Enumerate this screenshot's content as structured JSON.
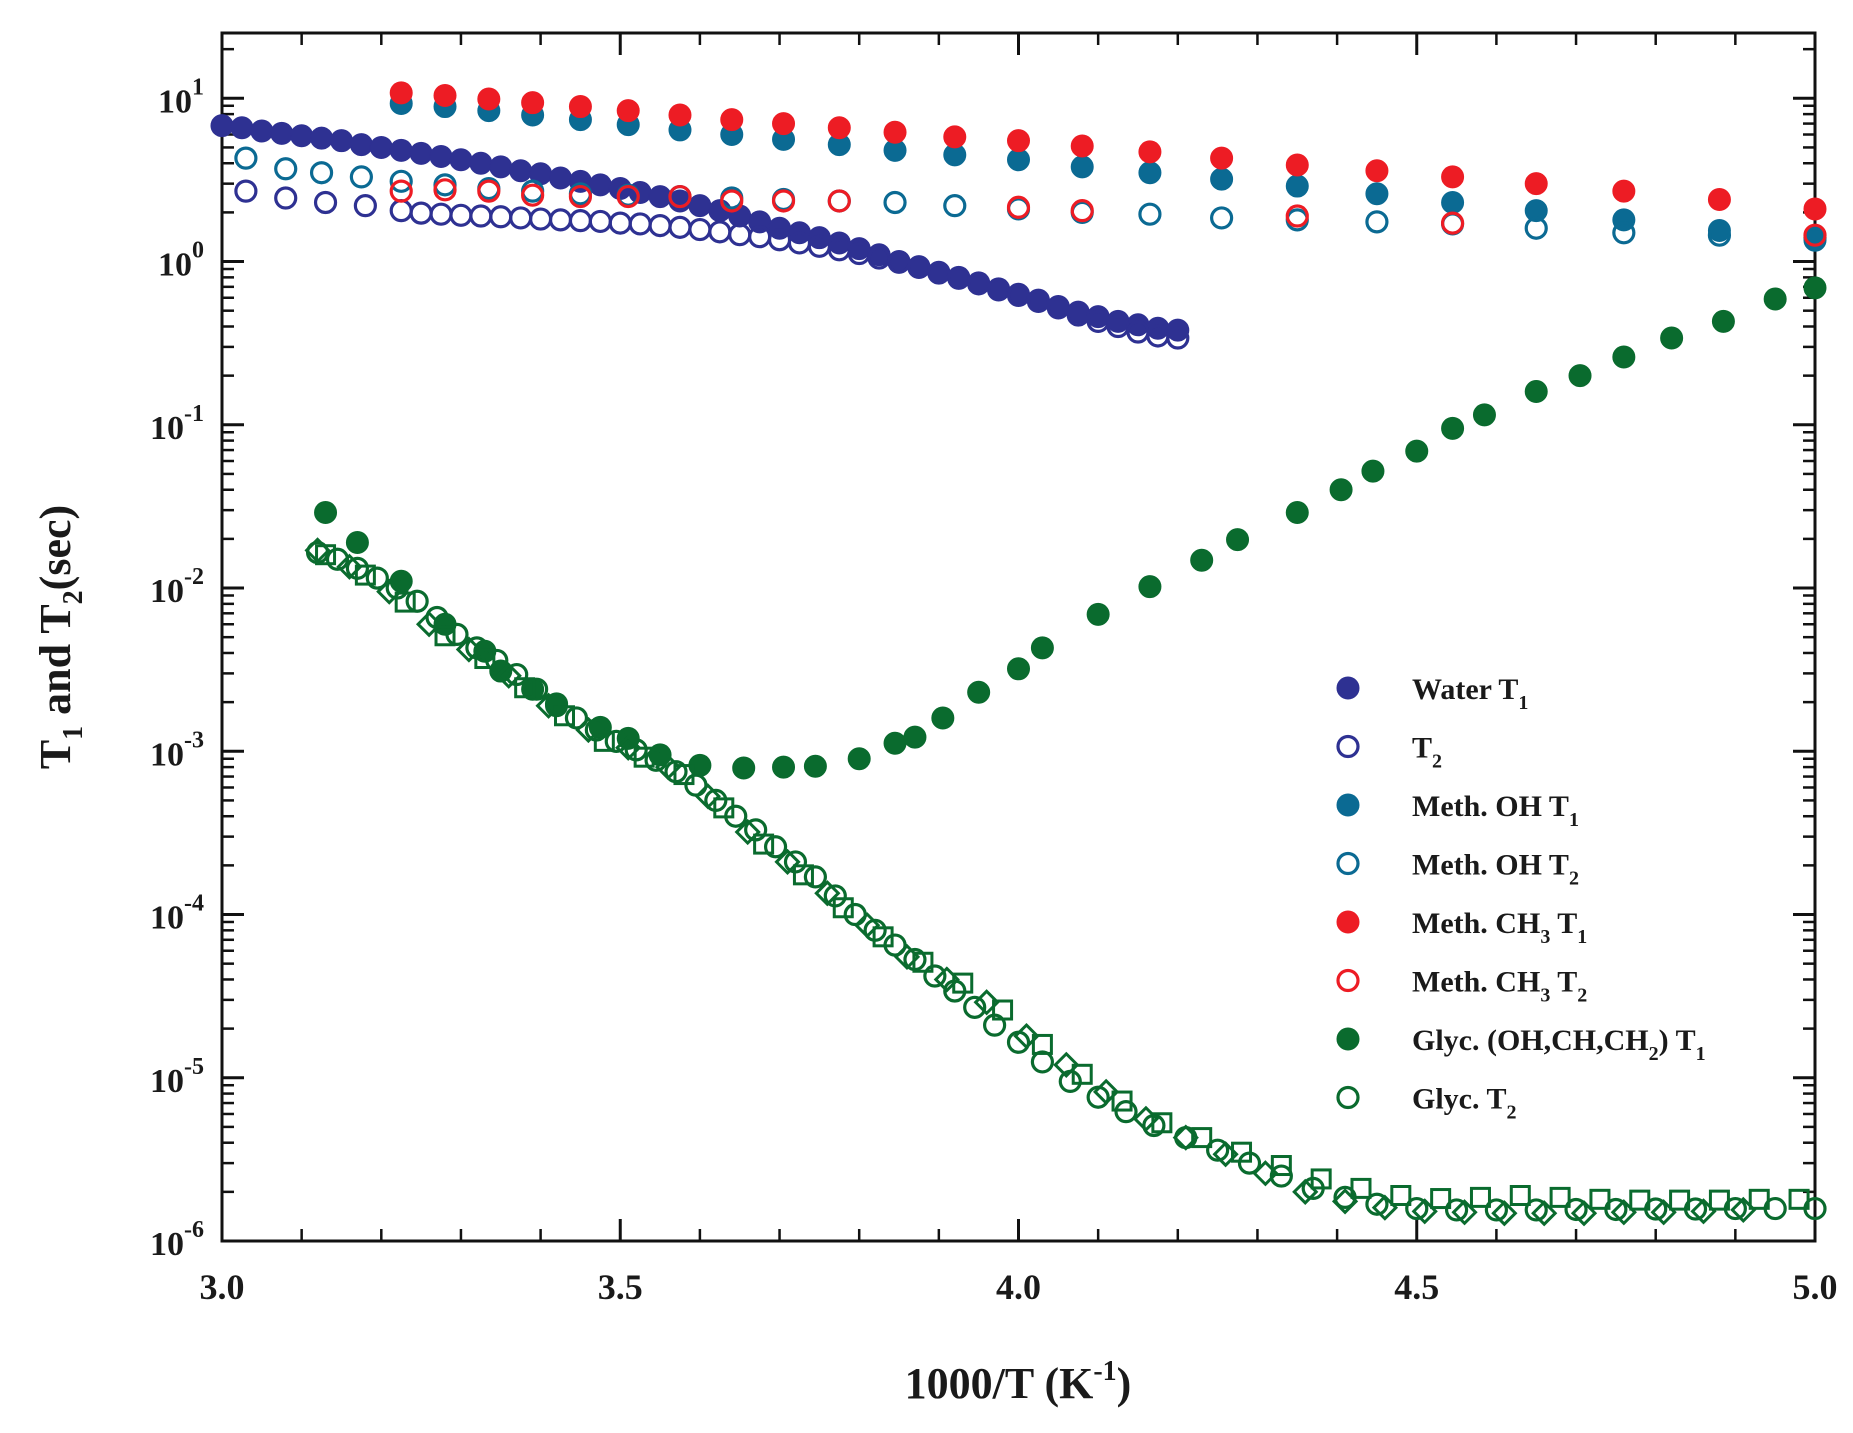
{
  "chart_data": {
    "type": "scatter",
    "xlabel": "1000/T (K",
    "xlabel_sup": "-1",
    "xlabel_end": ")",
    "ylabel_parts": [
      "T",
      "1",
      " and T",
      "2",
      "(sec)"
    ],
    "xlim": [
      3.0,
      5.0
    ],
    "ylim_log10": [
      -6,
      1.4
    ],
    "y_scale": "log",
    "x_ticks": [
      {
        "value": 3.0,
        "label": "3.0"
      },
      {
        "value": 3.5,
        "label": "3.5"
      },
      {
        "value": 4.0,
        "label": "4.0"
      },
      {
        "value": 4.5,
        "label": "4.5"
      },
      {
        "value": 5.0,
        "label": "5.0"
      }
    ],
    "y_ticks": [
      {
        "exp": 1,
        "base": "10",
        "sup": "1"
      },
      {
        "exp": 0,
        "base": "10",
        "sup": "0"
      },
      {
        "exp": -1,
        "base": "10",
        "sup": "-1"
      },
      {
        "exp": -2,
        "base": "10",
        "sup": "-2"
      },
      {
        "exp": -3,
        "base": "10",
        "sup": "-3"
      },
      {
        "exp": -4,
        "base": "10",
        "sup": "-4"
      },
      {
        "exp": -5,
        "base": "10",
        "sup": "-5"
      },
      {
        "exp": -6,
        "base": "10",
        "sup": "-6"
      }
    ],
    "legend_position": "right-center",
    "series": [
      {
        "id": "water-t1",
        "color": "#2e3192",
        "marker": "filled-circle",
        "legend": [
          [
            "Water T",
            ""
          ],
          [
            "1",
            "sub"
          ]
        ],
        "x": [
          3.0,
          3.025,
          3.05,
          3.075,
          3.1,
          3.125,
          3.15,
          3.175,
          3.2,
          3.225,
          3.25,
          3.275,
          3.3,
          3.325,
          3.35,
          3.375,
          3.4,
          3.425,
          3.45,
          3.475,
          3.5,
          3.525,
          3.55,
          3.575,
          3.6,
          3.625,
          3.65,
          3.675,
          3.7,
          3.725,
          3.75,
          3.775,
          3.8,
          3.825,
          3.85,
          3.875,
          3.9,
          3.925,
          3.95,
          3.975,
          4.0,
          4.025,
          4.05,
          4.075,
          4.1,
          4.125,
          4.15,
          4.175,
          4.2
        ],
        "y": [
          6.8,
          6.6,
          6.3,
          6.1,
          5.9,
          5.7,
          5.5,
          5.2,
          5.0,
          4.8,
          4.6,
          4.4,
          4.2,
          4.0,
          3.8,
          3.6,
          3.45,
          3.25,
          3.1,
          2.95,
          2.8,
          2.65,
          2.5,
          2.35,
          2.2,
          2.05,
          1.9,
          1.75,
          1.6,
          1.5,
          1.4,
          1.3,
          1.2,
          1.1,
          1.0,
          0.93,
          0.86,
          0.8,
          0.74,
          0.68,
          0.63,
          0.58,
          0.53,
          0.49,
          0.46,
          0.43,
          0.41,
          0.39,
          0.38
        ]
      },
      {
        "id": "water-t2",
        "color": "#2e3192",
        "marker": "open-circle",
        "legend": [
          [
            "T",
            ""
          ],
          [
            "2",
            "sub"
          ]
        ],
        "x": [
          3.03,
          3.08,
          3.13,
          3.18,
          3.225,
          3.25,
          3.275,
          3.3,
          3.325,
          3.35,
          3.375,
          3.4,
          3.425,
          3.45,
          3.475,
          3.5,
          3.525,
          3.55,
          3.575,
          3.6,
          3.625,
          3.65,
          3.675,
          3.7,
          3.725,
          3.75,
          3.775,
          3.8,
          3.825,
          3.85,
          3.875,
          3.9,
          3.925,
          3.95,
          3.975,
          4.0,
          4.025,
          4.05,
          4.075,
          4.1,
          4.125,
          4.15,
          4.175,
          4.2
        ],
        "y": [
          2.7,
          2.45,
          2.3,
          2.2,
          2.05,
          1.98,
          1.95,
          1.92,
          1.9,
          1.88,
          1.85,
          1.82,
          1.8,
          1.78,
          1.76,
          1.72,
          1.7,
          1.66,
          1.62,
          1.57,
          1.52,
          1.46,
          1.42,
          1.36,
          1.3,
          1.24,
          1.18,
          1.12,
          1.05,
          0.99,
          0.92,
          0.85,
          0.79,
          0.73,
          0.67,
          0.62,
          0.57,
          0.52,
          0.47,
          0.43,
          0.4,
          0.37,
          0.35,
          0.34
        ]
      },
      {
        "id": "meth-oh-t1",
        "color": "#0b6a93",
        "marker": "filled-circle",
        "legend": [
          [
            "Meth. OH T",
            ""
          ],
          [
            "1",
            "sub"
          ]
        ],
        "x": [
          3.225,
          3.28,
          3.335,
          3.39,
          3.45,
          3.51,
          3.575,
          3.64,
          3.705,
          3.775,
          3.845,
          3.92,
          4.0,
          4.08,
          4.165,
          4.255,
          4.35,
          4.45,
          4.545,
          4.65,
          4.76,
          4.88,
          5.0
        ],
        "y": [
          9.3,
          8.9,
          8.4,
          7.9,
          7.4,
          6.9,
          6.4,
          6.0,
          5.6,
          5.2,
          4.8,
          4.5,
          4.2,
          3.8,
          3.5,
          3.2,
          2.9,
          2.6,
          2.3,
          2.05,
          1.8,
          1.55,
          1.35
        ]
      },
      {
        "id": "meth-oh-t2",
        "color": "#0b6a93",
        "marker": "open-circle",
        "legend": [
          [
            "Meth. OH T",
            ""
          ],
          [
            "2",
            "sub"
          ]
        ],
        "x": [
          3.03,
          3.08,
          3.125,
          3.175,
          3.225,
          3.28,
          3.335,
          3.39,
          3.45,
          3.51,
          3.575,
          3.64,
          3.705,
          3.775,
          3.845,
          3.92,
          4.0,
          4.08,
          4.165,
          4.255,
          4.35,
          4.45,
          4.545,
          4.65,
          4.76,
          4.88,
          5.0
        ],
        "y": [
          4.3,
          3.7,
          3.5,
          3.3,
          3.1,
          2.95,
          2.8,
          2.7,
          2.6,
          2.55,
          2.5,
          2.45,
          2.4,
          2.35,
          2.3,
          2.2,
          2.1,
          2.0,
          1.95,
          1.85,
          1.8,
          1.75,
          1.7,
          1.6,
          1.5,
          1.45,
          1.4
        ]
      },
      {
        "id": "meth-ch3-t1",
        "color": "#ed1c24",
        "marker": "filled-circle",
        "legend": [
          [
            "Meth.  CH",
            ""
          ],
          [
            "3",
            "sub"
          ],
          [
            " T",
            ""
          ],
          [
            "1",
            "sub"
          ]
        ],
        "x": [
          3.225,
          3.28,
          3.335,
          3.39,
          3.45,
          3.51,
          3.575,
          3.64,
          3.705,
          3.775,
          3.845,
          3.92,
          4.0,
          4.08,
          4.165,
          4.255,
          4.35,
          4.45,
          4.545,
          4.65,
          4.76,
          4.88,
          5.0
        ],
        "y": [
          10.8,
          10.4,
          9.9,
          9.4,
          8.9,
          8.4,
          7.9,
          7.4,
          7.0,
          6.6,
          6.2,
          5.8,
          5.5,
          5.1,
          4.7,
          4.3,
          3.9,
          3.6,
          3.3,
          3.0,
          2.7,
          2.4,
          2.1
        ]
      },
      {
        "id": "meth-ch3-t2",
        "color": "#ed1c24",
        "marker": "open-circle",
        "legend": [
          [
            "Meth. CH",
            ""
          ],
          [
            "3",
            "sub"
          ],
          [
            " T",
            ""
          ],
          [
            "2",
            "sub"
          ]
        ],
        "x": [
          3.225,
          3.28,
          3.335,
          3.39,
          3.45,
          3.51,
          3.575,
          3.64,
          3.705,
          3.775,
          4.0,
          4.08,
          4.35,
          4.545,
          5.0
        ],
        "y": [
          2.7,
          2.75,
          2.7,
          2.55,
          2.5,
          2.5,
          2.5,
          2.35,
          2.35,
          2.35,
          2.15,
          2.05,
          1.9,
          1.72,
          1.45
        ]
      },
      {
        "id": "glyc-t1",
        "color": "#0a6b2e",
        "marker": "filled-circle",
        "legend": [
          [
            "Glyc. (OH,CH,CH",
            ""
          ],
          [
            "2",
            "sub"
          ],
          [
            ") T",
            ""
          ],
          [
            "1",
            "sub"
          ]
        ],
        "x": [
          3.13,
          3.17,
          3.225,
          3.28,
          3.33,
          3.35,
          3.39,
          3.42,
          3.475,
          3.51,
          3.55,
          3.6,
          3.655,
          3.705,
          3.745,
          3.8,
          3.845,
          3.87,
          3.905,
          3.95,
          4.0,
          4.03,
          4.1,
          4.165,
          4.23,
          4.275,
          4.35,
          4.405,
          4.445,
          4.5,
          4.545,
          4.585,
          4.65,
          4.705,
          4.76,
          4.82,
          4.885,
          4.95,
          5.0
        ],
        "y": [
          0.029,
          0.019,
          0.011,
          0.006,
          0.0041,
          0.0031,
          0.0024,
          0.0019,
          0.0014,
          0.0012,
          0.00095,
          0.00082,
          0.00079,
          0.0008,
          0.00081,
          0.0009,
          0.00112,
          0.00122,
          0.0016,
          0.0023,
          0.0032,
          0.0043,
          0.0069,
          0.0102,
          0.0148,
          0.0198,
          0.029,
          0.04,
          0.052,
          0.069,
          0.095,
          0.115,
          0.16,
          0.2,
          0.26,
          0.34,
          0.43,
          0.59,
          0.69
        ]
      },
      {
        "id": "glyc-t2",
        "color": "#0a6b2e",
        "marker": "open-circle",
        "legend": [
          [
            "Glyc. T",
            ""
          ],
          [
            "2",
            "sub"
          ]
        ],
        "x": [
          3.12,
          3.145,
          3.17,
          3.195,
          3.22,
          3.245,
          3.27,
          3.295,
          3.32,
          3.345,
          3.37,
          3.395,
          3.42,
          3.445,
          3.47,
          3.495,
          3.52,
          3.545,
          3.57,
          3.595,
          3.62,
          3.645,
          3.67,
          3.695,
          3.72,
          3.745,
          3.77,
          3.795,
          3.82,
          3.845,
          3.87,
          3.895,
          3.92,
          3.945,
          3.97,
          4.0,
          4.03,
          4.065,
          4.1,
          4.135,
          4.17,
          4.21,
          4.25,
          4.29,
          4.33,
          4.37,
          4.41,
          4.45,
          4.5,
          4.55,
          4.6,
          4.65,
          4.7,
          4.75,
          4.8,
          4.85,
          4.9,
          4.95,
          5.0
        ],
        "y": [
          0.0165,
          0.015,
          0.0132,
          0.0115,
          0.01,
          0.0083,
          0.0066,
          0.0052,
          0.0043,
          0.0036,
          0.00295,
          0.0024,
          0.00195,
          0.0016,
          0.00135,
          0.00115,
          0.00102,
          0.00088,
          0.00075,
          0.00062,
          0.0005,
          0.0004,
          0.00033,
          0.00026,
          0.00021,
          0.00017,
          0.00013,
          0.0001,
          8e-05,
          6.5e-05,
          5.3e-05,
          4.2e-05,
          3.4e-05,
          2.7e-05,
          2.1e-05,
          1.65e-05,
          1.25e-05,
          9.5e-06,
          7.6e-06,
          6.2e-06,
          5.1e-06,
          4.3e-06,
          3.6e-06,
          3e-06,
          2.5e-06,
          2.1e-06,
          1.85e-06,
          1.68e-06,
          1.58e-06,
          1.55e-06,
          1.55e-06,
          1.55e-06,
          1.56e-06,
          1.56e-06,
          1.57e-06,
          1.57e-06,
          1.58e-06,
          1.58e-06,
          1.58e-06
        ]
      },
      {
        "id": "glyc-t2-squares",
        "color": "#0a6b2e",
        "marker": "open-square",
        "legend": null,
        "x": [
          3.13,
          3.18,
          3.23,
          3.28,
          3.33,
          3.38,
          3.43,
          3.48,
          3.53,
          3.58,
          3.63,
          3.68,
          3.73,
          3.78,
          3.83,
          3.88,
          3.93,
          3.98,
          4.03,
          4.08,
          4.13,
          4.18,
          4.23,
          4.28,
          4.33,
          4.38,
          4.43,
          4.48,
          4.53,
          4.58,
          4.63,
          4.68,
          4.73,
          4.78,
          4.83,
          4.88,
          4.93,
          4.98
        ],
        "y": [
          0.016,
          0.012,
          0.0082,
          0.0051,
          0.0037,
          0.00245,
          0.00165,
          0.00115,
          0.00092,
          0.00072,
          0.00045,
          0.00027,
          0.000175,
          0.00011,
          7.3e-05,
          5.1e-05,
          3.8e-05,
          2.6e-05,
          1.6e-05,
          1.05e-05,
          7.2e-06,
          5.3e-06,
          4.3e-06,
          3.5e-06,
          2.9e-06,
          2.4e-06,
          2.1e-06,
          1.9e-06,
          1.82e-06,
          1.85e-06,
          1.9e-06,
          1.85e-06,
          1.8e-06,
          1.78e-06,
          1.78e-06,
          1.78e-06,
          1.8e-06,
          1.8e-06
        ]
      },
      {
        "id": "glyc-t2-diamonds",
        "color": "#0a6b2e",
        "marker": "open-diamond",
        "legend": null,
        "x": [
          3.12,
          3.16,
          3.21,
          3.26,
          3.31,
          3.36,
          3.41,
          3.46,
          3.51,
          3.56,
          3.61,
          3.66,
          3.71,
          3.76,
          3.81,
          3.86,
          3.91,
          3.96,
          4.01,
          4.06,
          4.11,
          4.16,
          4.21,
          4.26,
          4.31,
          4.36,
          4.41,
          4.46,
          4.51,
          4.56,
          4.61,
          4.66,
          4.71,
          4.76,
          4.81,
          4.86,
          4.91
        ],
        "y": [
          0.017,
          0.0135,
          0.0095,
          0.006,
          0.0042,
          0.0029,
          0.0019,
          0.00135,
          0.00105,
          0.0008,
          0.00053,
          0.00032,
          0.00021,
          0.000135,
          8.6e-05,
          5.5e-05,
          4e-05,
          2.9e-05,
          1.8e-05,
          1.2e-05,
          8.2e-06,
          5.6e-06,
          4.3e-06,
          3.4e-06,
          2.6e-06,
          2e-06,
          1.75e-06,
          1.6e-06,
          1.52e-06,
          1.5e-06,
          1.48e-06,
          1.48e-06,
          1.48e-06,
          1.5e-06,
          1.5e-06,
          1.52e-06,
          1.55e-06
        ]
      }
    ]
  }
}
